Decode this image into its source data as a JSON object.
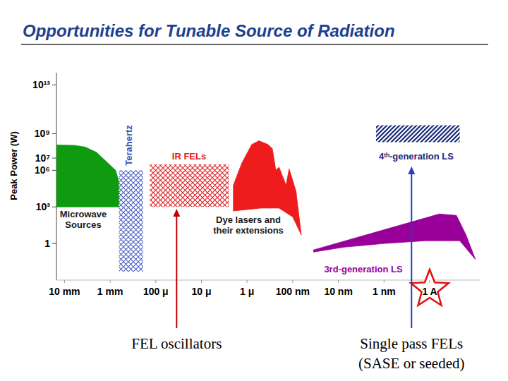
{
  "chart_data": {
    "type": "area",
    "title": "Opportunities for Tunable Source of Radiation",
    "y_label": "Peak Power (W)",
    "log": true,
    "xlim": [
      0.015,
      8e-12
    ],
    "ylim": [
      0.001,
      100000000000000.0
    ],
    "xticks": [
      {
        "value": 0.01,
        "label": "10 mm"
      },
      {
        "value": 0.001,
        "label": "1 mm"
      },
      {
        "value": 0.0001,
        "label": "100 μ"
      },
      {
        "value": 1e-05,
        "label": "10 μ"
      },
      {
        "value": 1e-06,
        "label": "1 μ"
      },
      {
        "value": 1e-07,
        "label": "100 nm"
      },
      {
        "value": 1e-08,
        "label": "10 nm"
      },
      {
        "value": 1e-09,
        "label": "1 nm"
      },
      {
        "value": 1e-10,
        "label": "1 A"
      }
    ],
    "yticks": [
      {
        "value": 10000000000000.0,
        "label": "10¹³"
      },
      {
        "value": 1000000000.0,
        "label": "10⁹"
      },
      {
        "value": 10000000.0,
        "label": "10⁷"
      },
      {
        "value": 1000000.0,
        "label": "10⁶"
      },
      {
        "value": 1000,
        "label": "10³"
      },
      1
    ],
    "series": [
      {
        "name": "Microwave\nSources",
        "color": "#109a10",
        "line_style": "solid",
        "x": [
          0.015,
          0.006,
          0.0035,
          0.002,
          0.0012,
          0.00076,
          0.0006,
          0.0005,
          0.015
        ],
        "values": [
          120000000.0,
          110000000.0,
          80000000.0,
          30000000.0,
          5000000.0,
          1000000.0,
          50000.0,
          1000,
          1000
        ]
      },
      {
        "name": "Terahertz",
        "color": "#4a5fc1",
        "line_style": "crosshatch",
        "x": [
          0.00064,
          0.00019,
          0.00019,
          0.00064
        ],
        "values": [
          1000000.0,
          1000000.0,
          0.005,
          0.005
        ]
      },
      {
        "name": "IR FELs",
        "color": "#e02020",
        "line_style": "crosshatch",
        "x": [
          0.000135,
          2.5e-06,
          2.5e-06,
          0.000135
        ],
        "values": [
          3000000.0,
          3000000.0,
          1000,
          1000
        ]
      },
      {
        "name": "Dye lasers and\ntheir extensions",
        "color": "#ee1c1c",
        "line_style": "solid",
        "x": [
          2e-06,
          1.3e-06,
          7.9e-07,
          5.5e-07,
          3.5e-07,
          2.8e-07,
          2.35e-07,
          2e-07,
          1.4e-07,
          1.2e-07,
          8.5e-08,
          6.5e-08,
          1e-07,
          2e-07,
          5e-07,
          2e-06
        ],
        "values": [
          60000.0,
          4000000.0,
          130000000.0,
          260000000.0,
          130000000.0,
          60000000.0,
          1000000.0,
          1800000.0,
          60000.0,
          1300000.0,
          20000.0,
          5,
          150,
          800,
          800,
          460
        ]
      },
      {
        "name": "3rd-generation LS",
        "color": "#990099",
        "line_style": "solid",
        "x": [
          3.5e-08,
          6.2e-11,
          2.6e-11,
          1.6e-11,
          1e-11,
          2.2e-11,
          1.2e-10,
          9.8e-10,
          7.6e-09,
          3.5e-08
        ],
        "values": [
          0.3,
          260,
          200,
          5,
          0.05,
          1.7,
          1.7,
          1,
          0.5,
          0.2
        ]
      },
      {
        "name": "4ᵗʰ-generation LS",
        "color": "#1a2a7a",
        "line_style": "diagonal",
        "x": [
          1.5e-09,
          2.2e-11,
          2.2e-11,
          1.5e-09
        ],
        "values": [
          5000000000.0,
          5000000000.0,
          200000000.0,
          200000000.0
        ]
      }
    ],
    "annotations": [
      {
        "text": "FEL oscillators",
        "x": 3.5e-05
      },
      {
        "text": "Single pass FELs\n(SASE or seeded)",
        "x": 2.5e-10
      }
    ]
  }
}
